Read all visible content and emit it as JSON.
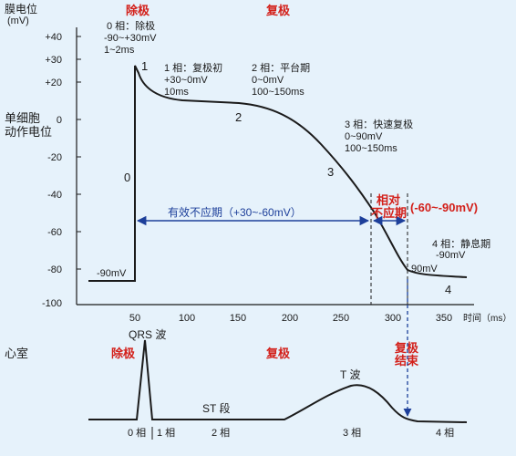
{
  "y_axis": {
    "title": "膜电位",
    "unit": "(mV)",
    "ticks": [
      "+40",
      "+30",
      "+20",
      "0",
      "-20",
      "-40",
      "-60",
      "-80",
      "-100"
    ],
    "side_label_line1": "单细胞",
    "side_label_line2": "动作电位"
  },
  "x_axis": {
    "ticks": [
      "50",
      "100",
      "150",
      "200",
      "250",
      "300",
      "350"
    ],
    "unit": "时间（ms）"
  },
  "headers": {
    "depol": "除极",
    "repol": "复极"
  },
  "phase0": {
    "title": "0 相：除极",
    "range": "-90~+30mV",
    "time": "1~2ms",
    "num": "0"
  },
  "phase1": {
    "title": "1 相：复极初",
    "range": "+30~0mV",
    "time": "10ms",
    "num": "1"
  },
  "phase2": {
    "title": "2 相：平台期",
    "range": "0~0mV",
    "time": "100~150ms",
    "num": "2"
  },
  "phase3": {
    "title": "3 相：快速复极",
    "range": "0~90mV",
    "time": "100~150ms",
    "num": "3"
  },
  "phase4": {
    "title": "4 相：静息期",
    "range": "-90mV",
    "num": "4"
  },
  "resting_left": "-90mV",
  "resting_right": "90mV",
  "refractory": {
    "effective": "有效不应期（+30~-60mV）",
    "relative_line1": "相对",
    "relative_line2": "不应期",
    "relative_range": "(-60~-90mV)"
  },
  "ecg": {
    "ventricle": "心室",
    "depol": "除极",
    "repol": "复极",
    "qrs": "QRS 波",
    "st": "ST 段",
    "t_wave": "T 波",
    "repol_end_line1": "复极",
    "repol_end_line2": "结束",
    "phases": [
      "0 相",
      "1 相",
      "2 相",
      "3 相",
      "4 相"
    ]
  },
  "colors": {
    "background": "#e6f2fb",
    "curve": "#1b1b1b",
    "red": "#d3201a",
    "blue": "#1d3f9a"
  }
}
